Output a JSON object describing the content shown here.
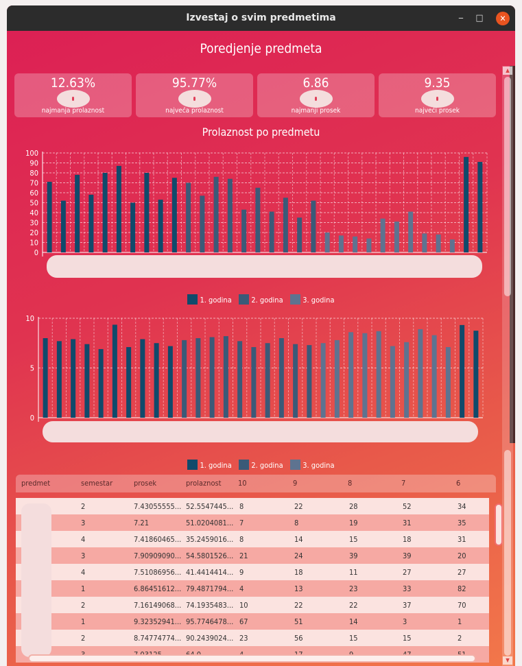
{
  "window": {
    "title": "Izvestaj o svim predmetima",
    "minimize": "‒",
    "maximize": "□",
    "close": "✕"
  },
  "header": {
    "title": "Poredjenje predmeta"
  },
  "cards": [
    {
      "value": "12.63%",
      "label": "najmanja prolaznost"
    },
    {
      "value": "95.77%",
      "label": "najveća prolaznost"
    },
    {
      "value": "6.86",
      "label": "najmanji prosek"
    },
    {
      "value": "9.35",
      "label": "najveći prosek"
    }
  ],
  "colors": {
    "year1": "#104a6b",
    "year2": "#3b5a78",
    "year3": "#5e7390"
  },
  "legend": [
    "1. godina",
    "2. godina",
    "3. godina"
  ],
  "chart_data": [
    {
      "type": "bar",
      "title": "Prolaznost po predmetu",
      "ylim": [
        0,
        100
      ],
      "yticks": [
        0,
        10,
        20,
        30,
        40,
        50,
        60,
        70,
        80,
        90,
        100
      ],
      "grid": true,
      "legend_position": "bottom",
      "values": [
        71,
        52,
        78,
        58,
        80,
        87,
        50,
        80,
        53,
        75,
        70,
        57,
        76,
        74,
        43,
        65,
        41,
        55,
        35,
        52,
        20,
        17,
        16,
        14,
        34,
        31,
        41,
        19,
        18,
        13,
        96,
        91
      ],
      "years": [
        1,
        1,
        1,
        1,
        1,
        1,
        1,
        1,
        1,
        1,
        2,
        2,
        2,
        2,
        2,
        2,
        2,
        2,
        2,
        2,
        3,
        3,
        3,
        3,
        3,
        3,
        3,
        3,
        3,
        3,
        1,
        1
      ]
    },
    {
      "type": "bar",
      "title": "",
      "ylim": [
        0,
        10
      ],
      "yticks": [
        0,
        5,
        10
      ],
      "grid": true,
      "legend_position": "bottom",
      "values": [
        8.0,
        7.7,
        7.9,
        7.4,
        6.9,
        9.35,
        7.1,
        7.9,
        7.5,
        7.2,
        7.8,
        8.0,
        8.1,
        8.2,
        7.7,
        7.1,
        7.5,
        8.0,
        7.4,
        7.3,
        7.5,
        7.8,
        8.6,
        8.5,
        8.7,
        7.2,
        7.6,
        8.9,
        8.3,
        7.1,
        9.32,
        8.75
      ],
      "years": [
        1,
        1,
        1,
        1,
        1,
        1,
        1,
        1,
        1,
        1,
        2,
        2,
        2,
        2,
        2,
        2,
        2,
        2,
        2,
        2,
        3,
        3,
        3,
        3,
        3,
        3,
        3,
        3,
        3,
        3,
        1,
        1
      ]
    }
  ],
  "table": {
    "columns": [
      "predmet",
      "semestar",
      "prosek",
      "prolaznost",
      "10",
      "9",
      "8",
      "7",
      "6"
    ],
    "rows": [
      [
        "",
        "2",
        "7.43055555...",
        "52.5547445...",
        "8",
        "22",
        "28",
        "52",
        "34"
      ],
      [
        "",
        "3",
        "7.21",
        "51.0204081...",
        "7",
        "8",
        "19",
        "31",
        "35"
      ],
      [
        "",
        "4",
        "7.41860465...",
        "35.2459016...",
        "8",
        "14",
        "15",
        "18",
        "31"
      ],
      [
        "",
        "3",
        "7.90909090...",
        "54.5801526...",
        "21",
        "24",
        "39",
        "39",
        "20"
      ],
      [
        "",
        "4",
        "7.51086956...",
        "41.4414414...",
        "9",
        "18",
        "11",
        "27",
        "27"
      ],
      [
        "",
        "1",
        "6.86451612...",
        "79.4871794...",
        "4",
        "13",
        "23",
        "33",
        "82"
      ],
      [
        "",
        "2",
        "7.16149068...",
        "74.1935483...",
        "10",
        "22",
        "22",
        "37",
        "70"
      ],
      [
        "",
        "1",
        "9.32352941...",
        "95.7746478...",
        "67",
        "51",
        "14",
        "3",
        "1"
      ],
      [
        "",
        "2",
        "8.74774774...",
        "90.2439024...",
        "23",
        "56",
        "15",
        "15",
        "2"
      ],
      [
        "",
        "3",
        "7.03125",
        "64.0",
        "4",
        "17",
        "9",
        "47",
        "51"
      ]
    ]
  }
}
